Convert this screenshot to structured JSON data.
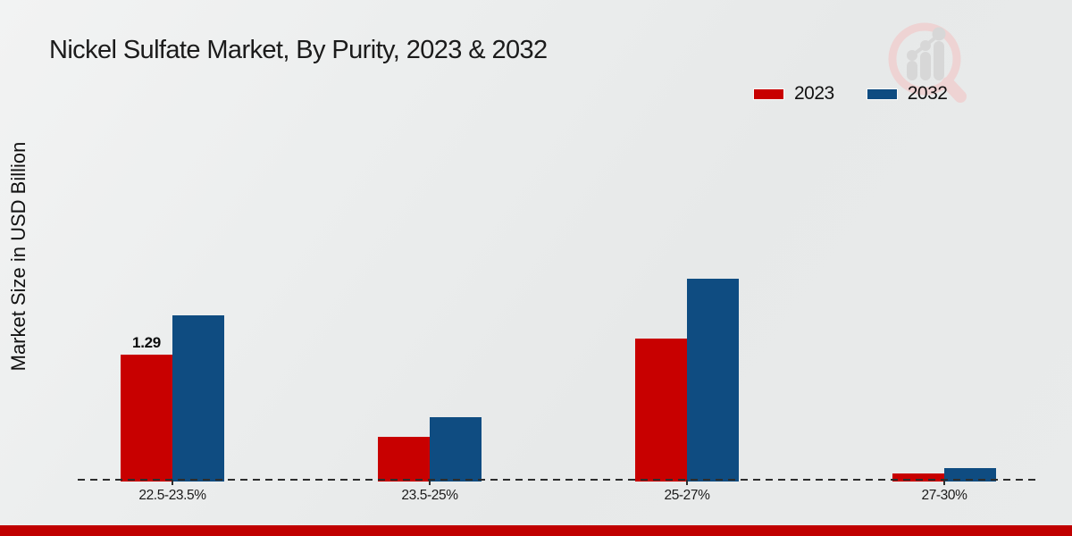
{
  "title": "Nickel Sulfate Market, By Purity, 2023 & 2032",
  "ylabel": "Market Size in USD Billion",
  "chart_data": {
    "type": "bar",
    "title": "Nickel Sulfate Market, By Purity, 2023 & 2032",
    "xlabel": "",
    "ylabel": "Market Size in USD Billion",
    "categories": [
      "22.5-23.5%",
      "23.5-25%",
      "25-27%",
      "27-30%"
    ],
    "series": [
      {
        "name": "2023",
        "color": "#c80000",
        "values": [
          1.29,
          0.45,
          1.45,
          0.08
        ],
        "data_labels": [
          "1.29",
          null,
          null,
          null
        ]
      },
      {
        "name": "2032",
        "color": "#0f4c81",
        "values": [
          1.69,
          0.65,
          2.06,
          0.14
        ],
        "data_labels": [
          null,
          null,
          null,
          null
        ]
      }
    ],
    "ylim": [
      0,
      2.3
    ],
    "grid": false,
    "y_axis_ticks_visible": false,
    "baseline_style": "dashed",
    "legend_position": "top-right"
  },
  "colors": {
    "series_2023": "#c80000",
    "series_2032": "#0f4c81",
    "footer_strip": "#c00000",
    "axis_dash": "#2d2d2d",
    "text": "#1b1b1b"
  },
  "watermark": {
    "name": "magnifier-bar-chart-logo",
    "ring_color": "#eed3d3",
    "bars_color": "#d7d7d7"
  }
}
